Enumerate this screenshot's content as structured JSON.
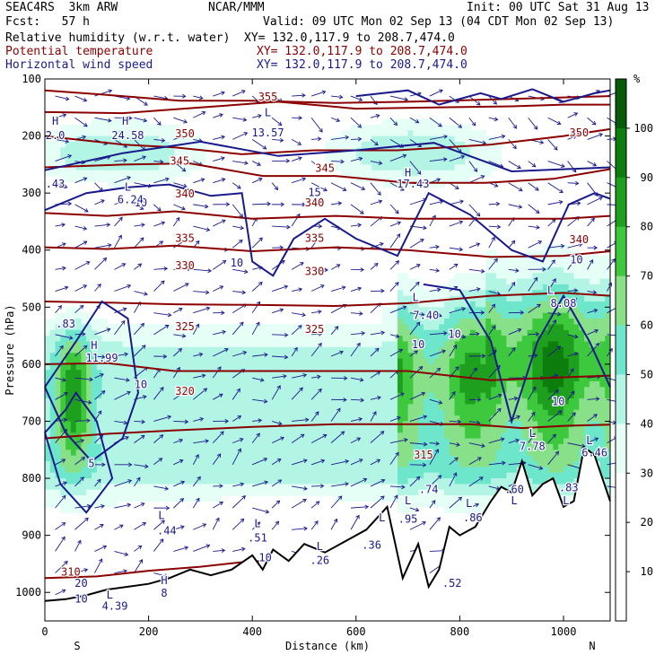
{
  "header": {
    "model": "SEAC4RS  3km ARW",
    "org": "NCAR/MMM",
    "init": "Init: 00 UTC Sat 31 Aug 13",
    "fcst": "Fcst:   57 h",
    "valid": "Valid: 09 UTC Mon 02 Sep 13 (04 CDT Mon 02 Sep 13)",
    "fields": [
      {
        "name": "Relative humidity (w.r.t. water)",
        "xy": "XY= 132.0,117.9 to 208.7,474.0"
      },
      {
        "name": "Potential temperature",
        "xy": "XY= 132.0,117.9 to 208.7,474.0"
      },
      {
        "name": "Horizontal wind speed",
        "xy": "XY= 132.0,117.9 to 208.7,474.0"
      }
    ]
  },
  "colors": {
    "theta": "#8b0000",
    "wind": "#1a1a8c",
    "terrain": "#000000",
    "rh_levels": [
      "#ffffff",
      "#ffffff",
      "#ffffff",
      "#e6fff6",
      "#b2f5e4",
      "#6ee6cc",
      "#88e088",
      "#3ec83e",
      "#1ea01e",
      "#0d7d0d",
      "#075a07"
    ]
  },
  "chart_data": {
    "type": "heatmap",
    "xlabel": "Distance (km)",
    "ylabel": "Pressure (hPa)",
    "xlim": [
      0,
      1090
    ],
    "ylim": [
      1050,
      100
    ],
    "x_ticks": [
      0,
      200,
      400,
      600,
      800,
      1000
    ],
    "y_ticks": [
      100,
      200,
      300,
      400,
      500,
      600,
      700,
      800,
      900,
      1000
    ],
    "x_end_labels": [
      "S",
      "N"
    ],
    "colorbar": {
      "unit": "%",
      "ticks": [
        10,
        20,
        30,
        40,
        50,
        60,
        70,
        80,
        90,
        100
      ]
    },
    "theta_contours": [
      {
        "level": "355",
        "x": [
          0,
          120,
          260,
          400,
          560,
          700,
          900,
          1090
        ],
        "p": [
          120,
          128,
          138,
          138,
          142,
          140,
          135,
          130
        ]
      },
      {
        "level": "350",
        "x": [
          0,
          150,
          300,
          450,
          600,
          750,
          900,
          1000,
          1090
        ],
        "p": [
          158,
          160,
          150,
          140,
          152,
          150,
          148,
          145,
          145
        ]
      },
      {
        "level": "345",
        "x": [
          0,
          150,
          250,
          380,
          520,
          680,
          860,
          1000,
          1090
        ],
        "p": [
          200,
          215,
          220,
          232,
          225,
          225,
          215,
          200,
          188
        ]
      },
      {
        "level": "340",
        "x": [
          0,
          150,
          280,
          420,
          560,
          700,
          850,
          980,
          1090
        ],
        "p": [
          255,
          250,
          248,
          270,
          270,
          282,
          282,
          275,
          258
        ]
      },
      {
        "level": "335",
        "x": [
          0,
          120,
          250,
          400,
          560,
          700,
          860,
          1000,
          1090
        ],
        "p": [
          335,
          340,
          332,
          345,
          340,
          345,
          345,
          345,
          340
        ]
      },
      {
        "level": "330",
        "x": [
          0,
          120,
          250,
          400,
          560,
          700,
          860,
          1000,
          1090
        ],
        "p": [
          395,
          398,
          392,
          402,
          395,
          400,
          412,
          410,
          402
        ]
      },
      {
        "level": "325",
        "x": [
          0,
          120,
          250,
          400,
          560,
          700,
          860,
          1000,
          1090
        ],
        "p": [
          490,
          492,
          495,
          496,
          498,
          493,
          480,
          475,
          480
        ]
      },
      {
        "level": "320",
        "x": [
          0,
          120,
          250,
          400,
          560,
          700,
          860,
          1000,
          1090
        ],
        "p": [
          600,
          598,
          612,
          612,
          612,
          612,
          628,
          623,
          620
        ]
      },
      {
        "level": "315",
        "x": [
          0,
          120,
          250,
          400,
          560,
          700,
          820,
          920,
          1000,
          1090
        ],
        "p": [
          730,
          722,
          716,
          710,
          705,
          705,
          705,
          712,
          708,
          706
        ]
      },
      {
        "level": "310",
        "x": [
          0,
          100,
          200,
          300,
          400,
          500
        ],
        "p": [
          975,
          972,
          962,
          955,
          945,
          948
        ]
      }
    ],
    "theta_labels": [
      {
        "text": "355",
        "x": 430,
        "p": 132
      },
      {
        "text": "350",
        "x": 270,
        "p": 197
      },
      {
        "text": "350",
        "x": 1030,
        "p": 195
      },
      {
        "text": "345",
        "x": 260,
        "p": 245
      },
      {
        "text": "345",
        "x": 540,
        "p": 257
      },
      {
        "text": "340",
        "x": 270,
        "p": 302
      },
      {
        "text": "340",
        "x": 520,
        "p": 318
      },
      {
        "text": "340",
        "x": 1030,
        "p": 382
      },
      {
        "text": "335",
        "x": 270,
        "p": 380
      },
      {
        "text": "335",
        "x": 520,
        "p": 380
      },
      {
        "text": "330",
        "x": 270,
        "p": 428
      },
      {
        "text": "330",
        "x": 520,
        "p": 438
      },
      {
        "text": "325",
        "x": 270,
        "p": 535
      },
      {
        "text": "325",
        "x": 520,
        "p": 540
      },
      {
        "text": "320",
        "x": 270,
        "p": 648
      },
      {
        "text": "315",
        "x": 730,
        "p": 760
      },
      {
        "text": "310",
        "x": 50,
        "p": 965
      }
    ],
    "wind_contours": [
      {
        "level": "10",
        "x": [
          0,
          80,
          160,
          240,
          320,
          380,
          400,
          440,
          480,
          540,
          600,
          680,
          740,
          820,
          900,
          960,
          1010,
          1060,
          1090
        ],
        "p": [
          330,
          300,
          290,
          285,
          305,
          300,
          420,
          445,
          380,
          345,
          380,
          410,
          300,
          338,
          400,
          420,
          320,
          300,
          310
        ]
      },
      {
        "level": "15",
        "x": [
          0,
          150,
          300,
          450,
          600,
          750,
          900,
          1090
        ],
        "p": [
          260,
          230,
          210,
          235,
          225,
          212,
          262,
          255
        ]
      },
      {
        "level": "10",
        "x": [
          0,
          60,
          110,
          160,
          180,
          150,
          90,
          40,
          0
        ],
        "p": [
          640,
          560,
          490,
          520,
          650,
          730,
          770,
          720,
          640
        ]
      },
      {
        "level": "5",
        "x": [
          0,
          40,
          60,
          100,
          130,
          80,
          30,
          0
        ],
        "p": [
          720,
          680,
          650,
          700,
          800,
          860,
          810,
          720
        ]
      },
      {
        "level": "10",
        "x": [
          730,
          800,
          860,
          900,
          950,
          1000,
          1050,
          1090
        ],
        "p": [
          460,
          470,
          560,
          700,
          560,
          480,
          560,
          640
        ]
      },
      {
        "level": "10",
        "x": [
          600,
          700,
          760,
          840,
          880,
          940,
          1000,
          1060,
          1090
        ],
        "p": [
          130,
          120,
          145,
          125,
          135,
          118,
          140,
          125,
          120
        ]
      }
    ],
    "wind_labels": [
      {
        "text": "10",
        "x": 185,
        "p": 318
      },
      {
        "text": "10",
        "x": 370,
        "p": 423
      },
      {
        "text": "15",
        "x": 520,
        "p": 300
      },
      {
        "text": "10",
        "x": 185,
        "p": 636
      },
      {
        "text": "10",
        "x": 1025,
        "p": 418
      },
      {
        "text": "10",
        "x": 720,
        "p": 566
      },
      {
        "text": "10",
        "x": 790,
        "p": 548
      },
      {
        "text": "10",
        "x": 990,
        "p": 666
      },
      {
        "text": "5",
        "x": 90,
        "p": 775
      },
      {
        "text": "10",
        "x": 425,
        "p": 940
      },
      {
        "text": "10",
        "x": 70,
        "p": 1012
      },
      {
        "text": "20",
        "x": 70,
        "p": 985
      }
    ],
    "extrema": [
      {
        "text": "H",
        "x": 20,
        "p": 175
      },
      {
        "text": "H",
        "x": 155,
        "p": 175
      },
      {
        "text": "L",
        "x": 430,
        "p": 160
      },
      {
        "text": "L",
        "x": 160,
        "p": 290
      },
      {
        "text": "H",
        "x": 700,
        "p": 265
      },
      {
        "text": "L",
        "x": 975,
        "p": 471
      },
      {
        "text": "H",
        "x": 95,
        "p": 568
      },
      {
        "text": "L",
        "x": 715,
        "p": 484
      },
      {
        "text": "L",
        "x": 940,
        "p": 722
      },
      {
        "text": "L",
        "x": 1050,
        "p": 735
      },
      {
        "text": "L",
        "x": 225,
        "p": 866
      },
      {
        "text": "L",
        "x": 410,
        "p": 880
      },
      {
        "text": "L",
        "x": 530,
        "p": 920
      },
      {
        "text": "L",
        "x": 650,
        "p": 870
      },
      {
        "text": "L",
        "x": 700,
        "p": 840
      },
      {
        "text": "L",
        "x": 818,
        "p": 845
      },
      {
        "text": "L",
        "x": 905,
        "p": 840
      },
      {
        "text": "L",
        "x": 1005,
        "p": 840
      },
      {
        "text": "L",
        "x": 125,
        "p": 1005
      },
      {
        "text": "H",
        "x": 230,
        "p": 980
      }
    ],
    "extrema_values": [
      {
        "text": "2.0",
        "x": 20,
        "p": 200
      },
      {
        "text": "24.58",
        "x": 160,
        "p": 200
      },
      {
        "text": "13.57",
        "x": 430,
        "p": 195
      },
      {
        "text": "6.24",
        "x": 165,
        "p": 312
      },
      {
        "text": "17.43",
        "x": 710,
        "p": 285
      },
      {
        "text": "8.08",
        "x": 1000,
        "p": 494
      },
      {
        "text": "11.99",
        "x": 110,
        "p": 590
      },
      {
        "text": "7.40",
        "x": 735,
        "p": 515
      },
      {
        "text": "7.78",
        "x": 940,
        "p": 745
      },
      {
        "text": "6.46",
        "x": 1060,
        "p": 756
      },
      {
        "text": ".44",
        "x": 235,
        "p": 893
      },
      {
        "text": ".51",
        "x": 410,
        "p": 905
      },
      {
        "text": ".26",
        "x": 530,
        "p": 945
      },
      {
        "text": ".36",
        "x": 630,
        "p": 918
      },
      {
        "text": ".95",
        "x": 700,
        "p": 872
      },
      {
        "text": ".74",
        "x": 740,
        "p": 820
      },
      {
        "text": ".86",
        "x": 825,
        "p": 870
      },
      {
        "text": ".60",
        "x": 905,
        "p": 820
      },
      {
        "text": ".83",
        "x": 1010,
        "p": 817
      },
      {
        "text": ".83",
        "x": 40,
        "p": 530
      },
      {
        "text": ".43",
        "x": 20,
        "p": 285
      },
      {
        "text": ".52",
        "x": 785,
        "p": 985
      },
      {
        "text": "4.39",
        "x": 135,
        "p": 1025
      },
      {
        "text": "8",
        "x": 230,
        "p": 1002
      }
    ],
    "terrain": {
      "x": [
        0,
        40,
        80,
        120,
        160,
        200,
        240,
        280,
        320,
        360,
        400,
        420,
        440,
        470,
        500,
        540,
        580,
        620,
        660,
        690,
        720,
        740,
        760,
        780,
        800,
        830,
        860,
        880,
        900,
        920,
        940,
        960,
        980,
        1000,
        1020,
        1040,
        1060,
        1090
      ],
      "p": [
        1015,
        1012,
        1005,
        995,
        990,
        985,
        975,
        960,
        970,
        960,
        935,
        960,
        925,
        945,
        915,
        930,
        910,
        890,
        850,
        975,
        915,
        990,
        960,
        885,
        900,
        885,
        840,
        815,
        825,
        770,
        830,
        810,
        800,
        850,
        840,
        745,
        760,
        840
      ]
    }
  }
}
